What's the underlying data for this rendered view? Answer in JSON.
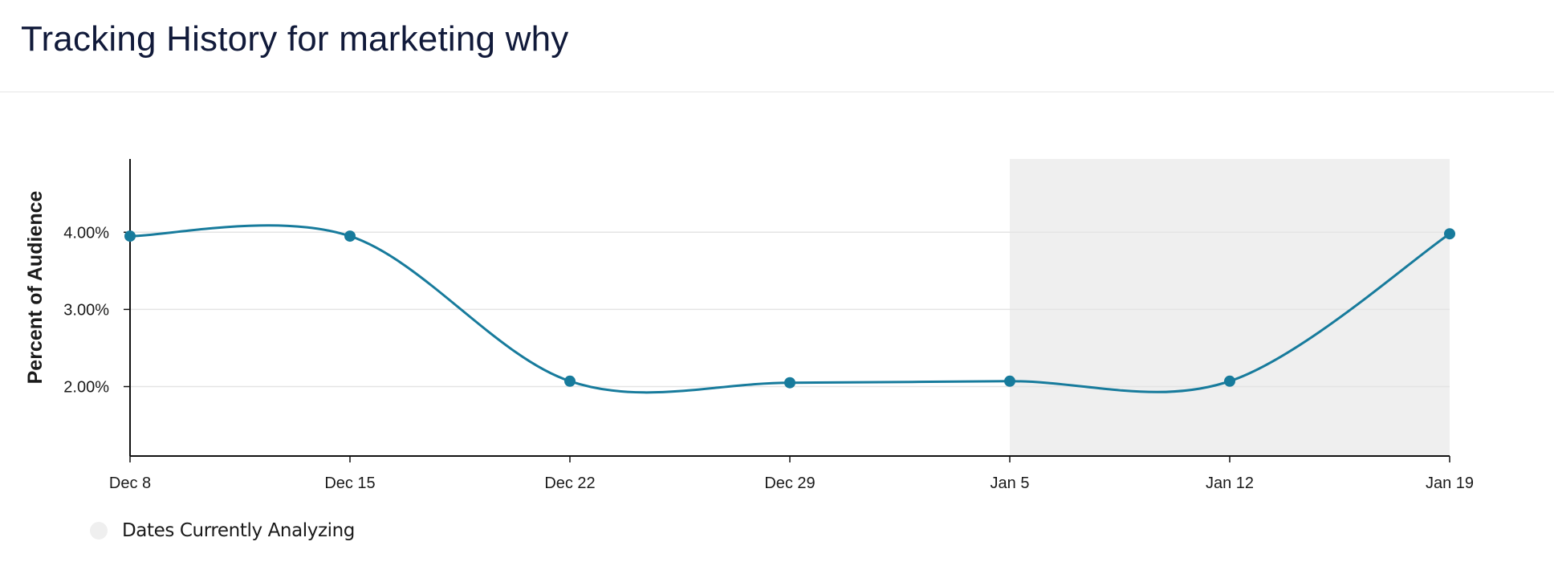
{
  "header": {
    "title": "Tracking History for marketing why"
  },
  "legend": {
    "label": "Dates Currently Analyzing"
  },
  "colors": {
    "line": "#177b9c",
    "highlight": "#efefef",
    "axis": "#111111",
    "grid": "#e4e4e4",
    "text": "#1a1a1a"
  },
  "chart_data": {
    "type": "line",
    "title": "Tracking History for marketing why",
    "ylabel": "Percent of Audience",
    "xlabel": "",
    "x": [
      "Dec 8",
      "Dec 15",
      "Dec 22",
      "Dec 29",
      "Jan 5",
      "Jan 12",
      "Jan 19"
    ],
    "series": [
      {
        "values": [
          3.95,
          3.95,
          2.07,
          2.05,
          2.07,
          2.07,
          3.98
        ]
      }
    ],
    "y_ticks": [
      2.0,
      3.0,
      4.0
    ],
    "y_tick_labels": [
      "2.00%",
      "3.00%",
      "4.00%"
    ],
    "ylim": [
      1.1,
      4.95
    ],
    "highlight_range": [
      "Jan 5",
      "Jan 19"
    ],
    "grid": true,
    "legend_position": "bottom-left"
  }
}
